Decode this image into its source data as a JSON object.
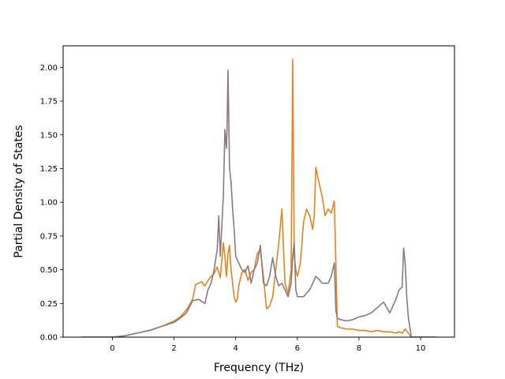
{
  "chart_data": {
    "type": "line",
    "title": "",
    "xlabel": "Frequency (THz)",
    "ylabel": "Partial Density of States",
    "xlim": [
      -1.6,
      11.1
    ],
    "ylim": [
      0.0,
      2.16
    ],
    "xticks": [
      0,
      2,
      4,
      6,
      8,
      10
    ],
    "yticks": [
      0.0,
      0.25,
      0.5,
      0.75,
      1.0,
      1.25,
      1.5,
      1.75,
      2.0
    ],
    "xtick_labels": [
      "0",
      "2",
      "4",
      "6",
      "8",
      "10"
    ],
    "ytick_labels": [
      "0.00",
      "0.25",
      "0.50",
      "0.75",
      "1.00",
      "1.25",
      "1.50",
      "1.75",
      "2.00"
    ],
    "grid": false,
    "legend": "none",
    "series": [
      {
        "color": "#e8821e",
        "x": [
          -1.0,
          0.0,
          0.4,
          0.8,
          1.2,
          1.6,
          2.0,
          2.2,
          2.4,
          2.6,
          2.7,
          2.9,
          3.0,
          3.1,
          3.2,
          3.3,
          3.4,
          3.5,
          3.6,
          3.65,
          3.7,
          3.75,
          3.8,
          3.85,
          3.9,
          3.95,
          4.0,
          4.05,
          4.1,
          4.2,
          4.3,
          4.4,
          4.5,
          4.6,
          4.7,
          4.8,
          4.9,
          5.0,
          5.1,
          5.2,
          5.3,
          5.4,
          5.5,
          5.6,
          5.7,
          5.8,
          5.85,
          5.9,
          5.95,
          6.0,
          6.1,
          6.2,
          6.3,
          6.4,
          6.5,
          6.55,
          6.6,
          6.65,
          6.7,
          6.8,
          6.9,
          7.0,
          7.1,
          7.2,
          7.25,
          7.3,
          7.4,
          7.6,
          7.8,
          8.0,
          8.2,
          8.4,
          8.6,
          8.8,
          9.0,
          9.2,
          9.3,
          9.4,
          9.5,
          9.6,
          9.7,
          10.0,
          10.5
        ],
        "y": [
          0.0,
          0.0,
          0.01,
          0.03,
          0.05,
          0.08,
          0.12,
          0.15,
          0.2,
          0.28,
          0.39,
          0.41,
          0.38,
          0.42,
          0.45,
          0.47,
          0.52,
          0.44,
          0.7,
          0.6,
          0.45,
          0.62,
          0.68,
          0.5,
          0.4,
          0.3,
          0.26,
          0.28,
          0.38,
          0.48,
          0.5,
          0.42,
          0.48,
          0.5,
          0.62,
          0.65,
          0.45,
          0.21,
          0.23,
          0.3,
          0.5,
          0.7,
          0.95,
          0.4,
          0.32,
          0.5,
          2.06,
          0.6,
          0.5,
          0.45,
          0.55,
          0.85,
          0.95,
          0.9,
          0.8,
          0.9,
          1.26,
          1.2,
          1.15,
          1.05,
          0.9,
          0.95,
          0.92,
          1.01,
          0.55,
          0.08,
          0.07,
          0.06,
          0.06,
          0.05,
          0.05,
          0.04,
          0.05,
          0.04,
          0.04,
          0.03,
          0.04,
          0.03,
          0.06,
          0.03,
          0.0,
          0.0,
          0.0
        ]
      },
      {
        "color": "#8a7b7b",
        "x": [
          -1.0,
          0.0,
          0.4,
          0.8,
          1.2,
          1.6,
          2.0,
          2.2,
          2.4,
          2.6,
          2.8,
          3.0,
          3.1,
          3.2,
          3.3,
          3.4,
          3.45,
          3.5,
          3.6,
          3.65,
          3.7,
          3.72,
          3.75,
          3.8,
          3.85,
          3.9,
          3.95,
          4.0,
          4.1,
          4.2,
          4.3,
          4.4,
          4.5,
          4.6,
          4.7,
          4.8,
          4.9,
          5.0,
          5.1,
          5.2,
          5.3,
          5.4,
          5.5,
          5.6,
          5.7,
          5.8,
          5.85,
          5.9,
          5.95,
          6.0,
          6.2,
          6.4,
          6.6,
          6.7,
          6.8,
          7.0,
          7.1,
          7.2,
          7.25,
          7.3,
          7.4,
          7.6,
          7.8,
          8.0,
          8.2,
          8.4,
          8.6,
          8.8,
          9.0,
          9.2,
          9.3,
          9.4,
          9.45,
          9.5,
          9.55,
          9.6,
          9.7,
          10.0,
          10.5
        ],
        "y": [
          0.0,
          0.0,
          0.01,
          0.03,
          0.05,
          0.08,
          0.11,
          0.14,
          0.18,
          0.27,
          0.28,
          0.25,
          0.35,
          0.4,
          0.5,
          0.65,
          0.9,
          0.6,
          1.05,
          1.54,
          1.4,
          1.55,
          1.98,
          1.25,
          1.15,
          0.95,
          0.8,
          0.6,
          0.55,
          0.5,
          0.48,
          0.53,
          0.4,
          0.5,
          0.55,
          0.68,
          0.4,
          0.38,
          0.45,
          0.59,
          0.45,
          0.38,
          0.4,
          0.35,
          0.3,
          0.4,
          0.6,
          0.7,
          0.35,
          0.3,
          0.3,
          0.35,
          0.45,
          0.43,
          0.4,
          0.4,
          0.45,
          0.55,
          0.2,
          0.14,
          0.13,
          0.12,
          0.13,
          0.15,
          0.16,
          0.18,
          0.22,
          0.26,
          0.18,
          0.28,
          0.35,
          0.37,
          0.66,
          0.55,
          0.3,
          0.15,
          0.0,
          0.0,
          0.0
        ]
      }
    ]
  }
}
